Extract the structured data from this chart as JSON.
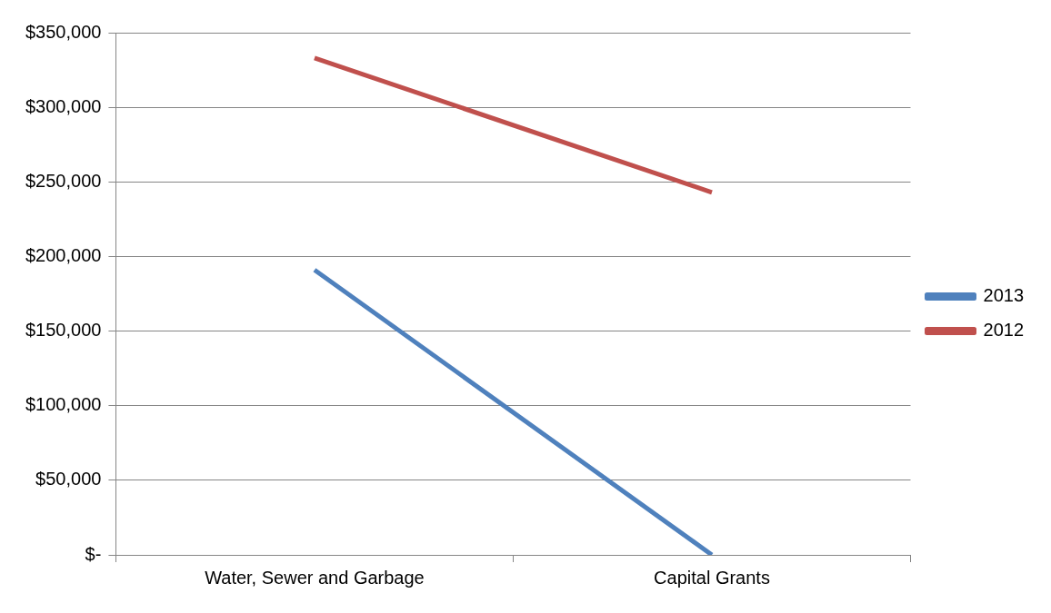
{
  "chart_data": {
    "type": "line",
    "categories": [
      "Water, Sewer and Garbage",
      "Capital Grants"
    ],
    "series": [
      {
        "name": "2013",
        "color": "#4f81bd",
        "values": [
          191000,
          0
        ]
      },
      {
        "name": "2012",
        "color": "#c0504d",
        "values": [
          333000,
          243000
        ]
      }
    ],
    "ylim": [
      0,
      350000
    ],
    "yticks": [
      {
        "value": 0,
        "label": "$-"
      },
      {
        "value": 50000,
        "label": "$50,000"
      },
      {
        "value": 100000,
        "label": "$100,000"
      },
      {
        "value": 150000,
        "label": "$150,000"
      },
      {
        "value": 200000,
        "label": "$200,000"
      },
      {
        "value": 250000,
        "label": "$250,000"
      },
      {
        "value": 300000,
        "label": "$300,000"
      },
      {
        "value": 350000,
        "label": "$350,000"
      }
    ],
    "grid": "y",
    "legend": "right",
    "marker": "none",
    "line_style": "solid"
  }
}
